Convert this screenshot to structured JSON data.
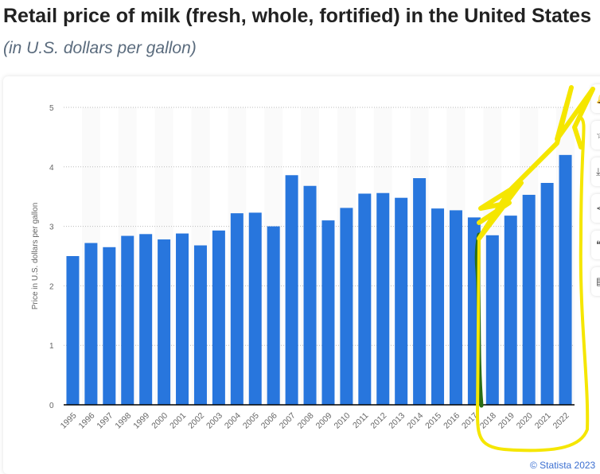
{
  "header": {
    "title": "Retail price of milk (fresh, whole, fortified) in the United States",
    "subtitle": "(in U.S. dollars per gallon)"
  },
  "credit": "© Statista 2023",
  "toolbar": {
    "icons": [
      "bell-icon",
      "star-icon",
      "download-icon",
      "share-icon",
      "quote-icon",
      "print-icon"
    ]
  },
  "colors": {
    "bar": "#2876dd",
    "annotation_yellow": "#f5e600",
    "annotation_green": "#2a6e12"
  },
  "chart_data": {
    "type": "bar",
    "title": "Retail price of milk (fresh, whole, fortified) in the United States",
    "ylabel": "Price in U.S. dollars per gallon",
    "xlabel": "",
    "ylim": [
      0,
      5
    ],
    "yticks": [
      0,
      1,
      2,
      3,
      4,
      5
    ],
    "grid": true,
    "categories": [
      "1995",
      "1996",
      "1997",
      "1998",
      "1999",
      "2000",
      "2001",
      "2002",
      "2003",
      "2004",
      "2005",
      "2006",
      "2007",
      "2008",
      "2009",
      "2010",
      "2011",
      "2012",
      "2013",
      "2014",
      "2015",
      "2016",
      "2017",
      "2018",
      "2019",
      "2020",
      "2021",
      "2022"
    ],
    "values": [
      2.5,
      2.72,
      2.65,
      2.84,
      2.87,
      2.78,
      2.88,
      2.68,
      2.93,
      3.22,
      3.23,
      3.0,
      3.86,
      3.68,
      3.1,
      3.31,
      3.55,
      3.56,
      3.48,
      3.81,
      3.3,
      3.27,
      3.15,
      2.85,
      3.18,
      3.53,
      3.73,
      4.2
    ]
  }
}
